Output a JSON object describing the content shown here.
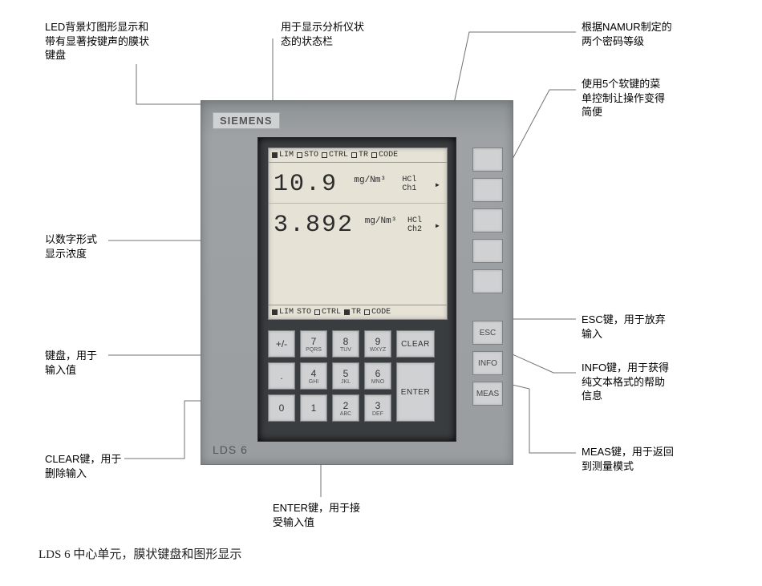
{
  "annotations": {
    "led_keypad": "LED背景灯图形显示和\n带有显著按键声的膜状\n键盘",
    "status_bar": "用于显示分析仪状\n态的状态栏",
    "namur": "根据NAMUR制定的\n两个密码等级",
    "softkeys": "使用5个软键的菜\n单控制让操作变得\n简便",
    "concentration": "以数字形式\n显示浓度",
    "keypad_input": "键盘，用于\n输入值",
    "clear": "CLEAR键，用于\n删除输入",
    "enter": "ENTER键，用于接\n受输入值",
    "esc": "ESC键，用于放弃\n输入",
    "info": "INFO键，用于获得\n纯文本格式的帮助\n信息",
    "meas": "MEAS键，用于返回\n到测量模式"
  },
  "panel": {
    "brand": "SIEMENS",
    "model": "LDS 6"
  },
  "lcd": {
    "status_items": [
      {
        "label": "LIM",
        "fill": true
      },
      {
        "label": "STO",
        "fill": false
      },
      {
        "label": "CTRL",
        "fill": false
      },
      {
        "label": "TR",
        "fill": false
      },
      {
        "label": "CODE",
        "fill": false
      }
    ],
    "status_items_bottom": [
      {
        "label": "LIM",
        "fill": true
      },
      {
        "label": "STO",
        "fill": false,
        "noBox": true
      },
      {
        "label": "CTRL",
        "fill": false
      },
      {
        "label": "TR",
        "fill": true
      },
      {
        "label": "CODE",
        "fill": false
      }
    ],
    "readouts": [
      {
        "value": "10.9",
        "unit": "mg/Nm³",
        "chan1": "HCl",
        "chan2": "Ch1"
      },
      {
        "value": "3.892",
        "unit": "mg/Nm³",
        "chan1": "HCl",
        "chan2": "Ch2"
      }
    ]
  },
  "keypad": {
    "rows": [
      [
        {
          "t": "+/-"
        },
        {
          "t": "7",
          "s": "PQRS"
        },
        {
          "t": "8",
          "s": "TUV"
        },
        {
          "t": "9",
          "s": "WXYZ"
        },
        {
          "t": "CLEAR",
          "wide": true
        }
      ],
      [
        {
          "t": "."
        },
        {
          "t": "4",
          "s": "GHI"
        },
        {
          "t": "5",
          "s": "JKL"
        },
        {
          "t": "6",
          "s": "MNO"
        },
        {
          "blank": true
        }
      ],
      [
        {
          "t": "0"
        },
        {
          "t": "1"
        },
        {
          "t": "2",
          "s": "ABC"
        },
        {
          "t": "3",
          "s": "DEF"
        },
        {
          "t": "ENTER",
          "wide": true,
          "enter": true
        }
      ]
    ]
  },
  "softkeys": {
    "blank_count": 5,
    "named": [
      "ESC",
      "INFO",
      "MEAS"
    ]
  },
  "caption": "LDS 6 中心单元，膜状键盘和图形显示",
  "colors": {
    "panel_bg": "#9a9ea0",
    "inset_bg": "#3a3d3f",
    "lcd_bg": "#e6e2d6",
    "key_bg": "#cfd1d2",
    "leader": "#6f7274"
  }
}
